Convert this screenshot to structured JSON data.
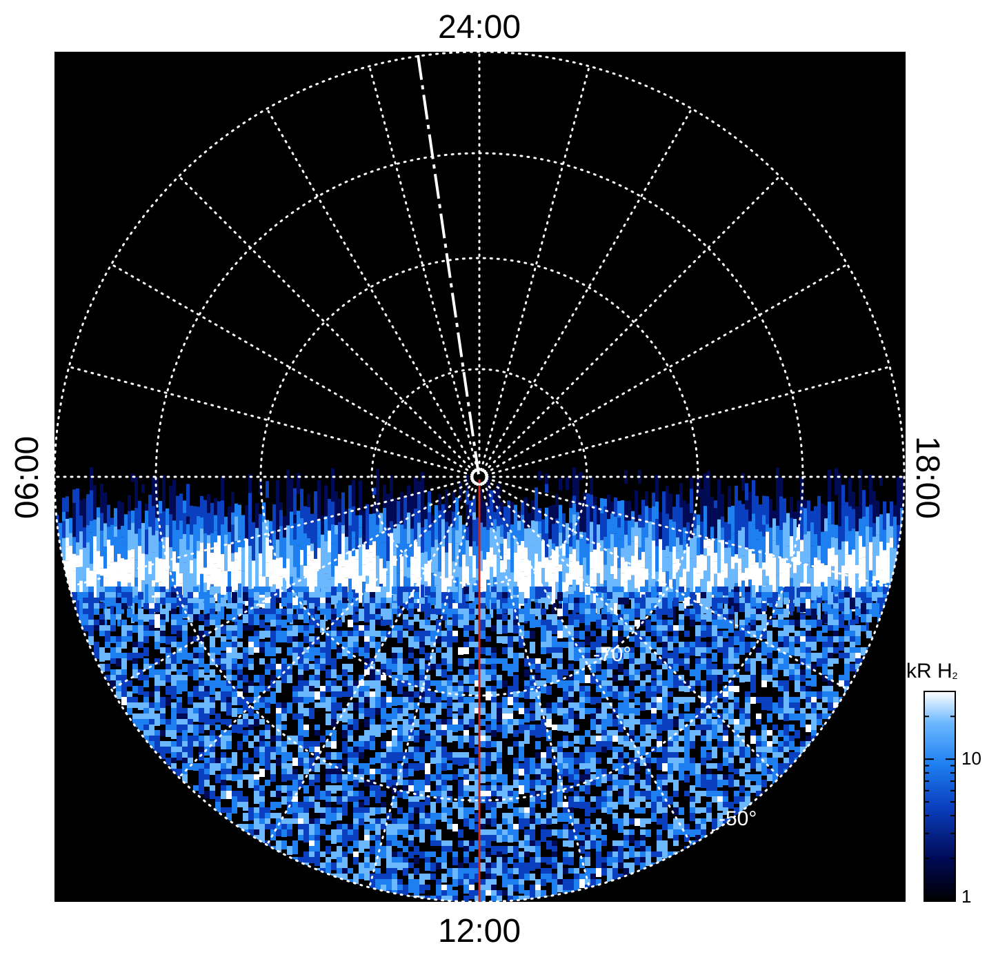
{
  "chart_data": {
    "type": "heatmap",
    "projection": "polar",
    "axes": {
      "local_time_labels": {
        "top": "24:00",
        "bottom": "12:00",
        "left": "06:00",
        "right": "18:00"
      },
      "latitude_labels": [
        "-70°",
        "-50°"
      ]
    },
    "colorbar": {
      "title": "kR H",
      "title_subscript": "2",
      "ticks": [
        "10",
        "1"
      ],
      "scale": "log",
      "range": [
        1,
        30
      ],
      "colors": [
        "#000000",
        "#000a55",
        "#0a3fbf",
        "#1e7ff0",
        "#6cb8ff",
        "#ffffff"
      ]
    },
    "overlays": {
      "noon_meridian_color": "#c8281e",
      "dashed_meridian_color": "#ffffff",
      "grid_color": "#ffffff",
      "background_color": "#000000"
    }
  }
}
